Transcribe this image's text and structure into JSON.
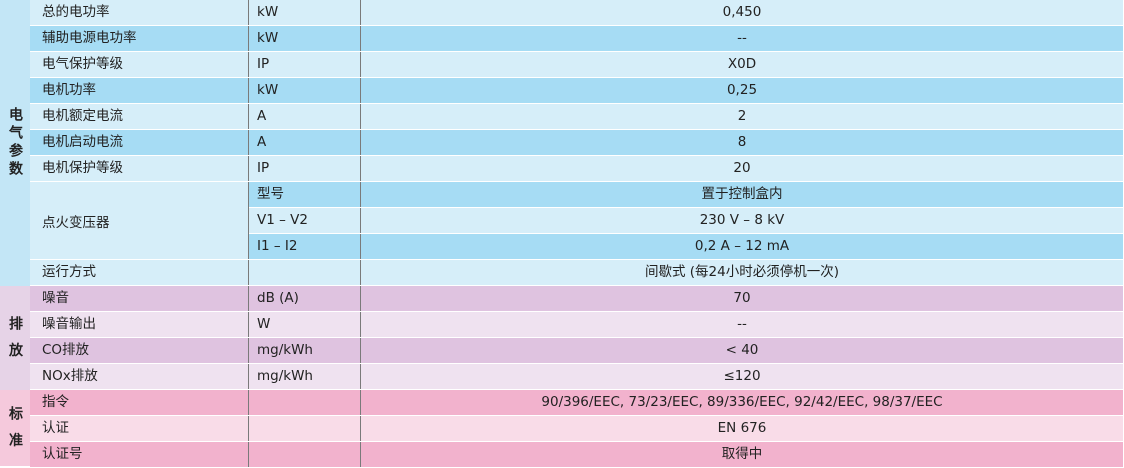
{
  "colors": {
    "electric_dark": "#a6dcf4",
    "electric_light": "#d6eef9",
    "emission_dark": "#dfc3e0",
    "emission_light": "#efe2f0",
    "standard_dark": "#f2b2cd",
    "standard_light": "#f9dce8",
    "label_electric": "#c3e6f6",
    "label_emission": "#e6d3e7",
    "label_standard": "#f5c9dc"
  },
  "sections": {
    "electric": "电气参数",
    "emission": "排 放",
    "standard": "标 准"
  },
  "rows": [
    {
      "param": "总的电功率",
      "unit": "kW",
      "value": "0,450"
    },
    {
      "param": "辅助电源电功率",
      "unit": "kW",
      "value": "--"
    },
    {
      "param": "电气保护等级",
      "unit": "IP",
      "value": "X0D"
    },
    {
      "param": "电机功率",
      "unit": "kW",
      "value": "0,25"
    },
    {
      "param": "电机额定电流",
      "unit": "A",
      "value": "2"
    },
    {
      "param": "电机启动电流",
      "unit": "A",
      "value": "8"
    },
    {
      "param": "电机保护等级",
      "unit": "IP",
      "value": "20"
    },
    {
      "param": "",
      "unit": "型号",
      "value": "置于控制盒内"
    },
    {
      "param": "",
      "unit": "V1 – V2",
      "value": "230 V – 8 kV"
    },
    {
      "param": "",
      "unit": "I1 – I2",
      "value": "0,2 A – 12 mA"
    },
    {
      "param": "运行方式",
      "unit": "",
      "value": "间歇式 (每24小时必须停机一次)"
    },
    {
      "param": "噪音",
      "unit": "dB (A)",
      "value": "70"
    },
    {
      "param": "噪音输出",
      "unit": "W",
      "value": "--"
    },
    {
      "param": "CO排放",
      "unit": "mg/kWh",
      "value": "< 40"
    },
    {
      "param": "NOx排放",
      "unit": "mg/kWh",
      "value": "≤120"
    },
    {
      "param": "指令",
      "unit": "",
      "value": "90/396/EEC, 73/23/EEC, 89/336/EEC, 92/42/EEC, 98/37/EEC"
    },
    {
      "param": "认证",
      "unit": "",
      "value": "EN 676"
    },
    {
      "param": "认证号",
      "unit": "",
      "value": "取得中"
    }
  ],
  "ignition_transformer": "点火变压器"
}
